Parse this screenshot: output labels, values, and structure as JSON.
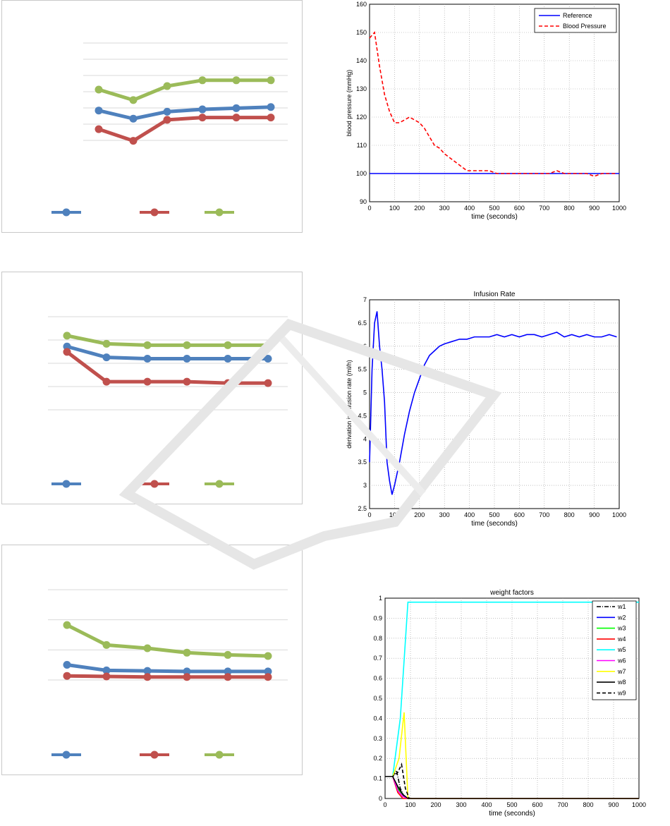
{
  "chart_data": [
    {
      "id": "excel1",
      "type": "line",
      "categories": [
        "",
        "",
        "",
        "",
        "",
        ""
      ],
      "series": [
        {
          "color": "#4f81bd",
          "values": [
            0.62,
            0.55,
            0.61,
            0.63,
            0.64,
            0.65
          ]
        },
        {
          "color": "#c0504d",
          "values": [
            0.46,
            0.36,
            0.54,
            0.56,
            0.56,
            0.56
          ]
        },
        {
          "color": "#9bbb59",
          "values": [
            0.8,
            0.71,
            0.83,
            0.88,
            0.88,
            0.88
          ]
        }
      ],
      "ylim": [
        0,
        1.2
      ]
    },
    {
      "id": "matlab_bp",
      "type": "line",
      "xlabel": "time (seconds)",
      "ylabel": "blood pressure (mmHg)",
      "xlim": [
        0,
        1000
      ],
      "ylim": [
        90,
        160
      ],
      "xticks": [
        "0",
        "100",
        "200",
        "300",
        "400",
        "500",
        "600",
        "700",
        "800",
        "900",
        "1000"
      ],
      "yticks": [
        "90",
        "100",
        "110",
        "120",
        "130",
        "140",
        "150",
        "160"
      ],
      "legend": {
        "position": "top-right",
        "entries": [
          "Reference",
          "Blood Pressure"
        ]
      },
      "grid": true,
      "series": [
        {
          "name": "Reference",
          "color": "#0000ff",
          "style": "solid",
          "x": [
            0,
            1000
          ],
          "y": [
            100,
            100
          ]
        },
        {
          "name": "Blood Pressure",
          "color": "#ff0000",
          "style": "dashed",
          "x": [
            0,
            20,
            40,
            60,
            80,
            100,
            120,
            140,
            160,
            180,
            200,
            220,
            240,
            260,
            280,
            300,
            330,
            360,
            390,
            420,
            450,
            480,
            510,
            540,
            570,
            600,
            630,
            660,
            690,
            720,
            750,
            780,
            810,
            840,
            870,
            900,
            930,
            960,
            990
          ],
          "y": [
            148,
            150,
            138,
            128,
            122,
            118,
            118,
            119,
            120,
            119,
            118,
            116,
            113,
            110,
            109,
            107,
            105,
            103,
            101,
            101,
            101,
            101,
            100,
            100,
            100,
            100,
            100,
            100,
            100,
            100,
            101,
            100,
            100,
            100,
            100,
            99,
            100,
            100,
            100
          ]
        }
      ]
    },
    {
      "id": "excel2",
      "type": "line",
      "categories": [
        "",
        "",
        "",
        "",
        "",
        ""
      ],
      "series": [
        {
          "color": "#4f81bd",
          "values": [
            0.78,
            0.7,
            0.69,
            0.69,
            0.69,
            0.69
          ]
        },
        {
          "color": "#c0504d",
          "values": [
            0.74,
            0.52,
            0.52,
            0.52,
            0.51,
            0.51
          ]
        },
        {
          "color": "#9bbb59",
          "values": [
            0.86,
            0.8,
            0.79,
            0.79,
            0.79,
            0.79
          ]
        }
      ],
      "ylim": [
        0,
        1.0
      ]
    },
    {
      "id": "matlab_inf",
      "type": "line",
      "title": "Infusion Rate",
      "xlabel": "time (seconds)",
      "ylabel": "derivation in infusion rate (ml/h)",
      "xlim": [
        0,
        1000
      ],
      "ylim": [
        2.5,
        7
      ],
      "xticks": [
        "0",
        "100",
        "200",
        "300",
        "400",
        "500",
        "600",
        "700",
        "800",
        "900",
        "1000"
      ],
      "yticks": [
        "2.5",
        "3",
        "3.5",
        "4",
        "4.5",
        "5",
        "5.5",
        "6",
        "6.5",
        "7"
      ],
      "grid": true,
      "series": [
        {
          "color": "#0000ff",
          "style": "solid",
          "x": [
            0,
            10,
            20,
            30,
            40,
            50,
            60,
            70,
            80,
            90,
            100,
            120,
            140,
            160,
            180,
            200,
            220,
            240,
            260,
            280,
            300,
            330,
            360,
            390,
            420,
            450,
            480,
            510,
            540,
            570,
            600,
            630,
            660,
            690,
            720,
            750,
            780,
            810,
            840,
            870,
            900,
            930,
            960,
            990
          ],
          "y": [
            3.5,
            5.5,
            6.5,
            6.75,
            6.0,
            5.5,
            4.8,
            3.5,
            3.1,
            2.8,
            3.0,
            3.5,
            4.1,
            4.6,
            5.0,
            5.3,
            5.6,
            5.8,
            5.9,
            6.0,
            6.05,
            6.1,
            6.15,
            6.15,
            6.2,
            6.2,
            6.2,
            6.25,
            6.2,
            6.25,
            6.2,
            6.25,
            6.25,
            6.2,
            6.25,
            6.3,
            6.2,
            6.25,
            6.2,
            6.25,
            6.2,
            6.2,
            6.25,
            6.2
          ]
        }
      ]
    },
    {
      "id": "excel3",
      "type": "line",
      "categories": [
        "",
        "",
        "",
        "",
        "",
        ""
      ],
      "series": [
        {
          "color": "#4f81bd",
          "values": [
            0.52,
            0.47,
            0.465,
            0.46,
            0.46,
            0.46
          ]
        },
        {
          "color": "#c0504d",
          "values": [
            0.42,
            0.415,
            0.41,
            0.41,
            0.41,
            0.41
          ]
        },
        {
          "color": "#9bbb59",
          "values": [
            0.88,
            0.7,
            0.67,
            0.63,
            0.61,
            0.6
          ]
        }
      ],
      "ylim": [
        0,
        1.2
      ]
    },
    {
      "id": "matlab_w",
      "type": "line",
      "title": "weight factors",
      "xlabel": "time (seconds)",
      "xlim": [
        0,
        1000
      ],
      "ylim": [
        0,
        1
      ],
      "xticks": [
        "0",
        "100",
        "200",
        "300",
        "400",
        "500",
        "600",
        "700",
        "800",
        "900",
        "1000"
      ],
      "yticks": [
        "0",
        "0.1",
        "0.2",
        "0.3",
        "0.4",
        "0.5",
        "0.6",
        "0.7",
        "0.8",
        "0.9",
        "1"
      ],
      "grid": true,
      "legend": {
        "position": "top-right",
        "entries": [
          "w1",
          "w2",
          "w3",
          "w4",
          "w5",
          "w6",
          "w7",
          "w8",
          "w9"
        ]
      },
      "series": [
        {
          "name": "w1",
          "color": "#000000",
          "style": "dashdot",
          "x": [
            0,
            30,
            45,
            60,
            75,
            90
          ],
          "y": [
            0.11,
            0.11,
            0.14,
            0.05,
            0.01,
            0
          ]
        },
        {
          "name": "w2",
          "color": "#0000ff",
          "style": "solid",
          "x": [
            0,
            30,
            50,
            70,
            90,
            1000
          ],
          "y": [
            0.11,
            0.11,
            0.05,
            0.01,
            0,
            0
          ]
        },
        {
          "name": "w3",
          "color": "#00ff00",
          "style": "solid",
          "x": [
            0,
            30,
            50,
            70,
            90,
            1000
          ],
          "y": [
            0.11,
            0.11,
            0.05,
            0.01,
            0,
            0
          ]
        },
        {
          "name": "w4",
          "color": "#ff0000",
          "style": "solid",
          "x": [
            0,
            30,
            50,
            70,
            90,
            1000
          ],
          "y": [
            0.11,
            0.11,
            0.03,
            0.0,
            0,
            0
          ]
        },
        {
          "name": "w5",
          "color": "#00ffff",
          "style": "solid",
          "x": [
            0,
            30,
            60,
            90,
            1000
          ],
          "y": [
            0.11,
            0.11,
            0.4,
            0.98,
            0.98
          ]
        },
        {
          "name": "w6",
          "color": "#ff00ff",
          "style": "solid",
          "x": [
            0,
            30,
            50,
            70,
            90,
            1000
          ],
          "y": [
            0.11,
            0.11,
            0.04,
            0.01,
            0,
            0
          ]
        },
        {
          "name": "w7",
          "color": "#ffff00",
          "style": "solid",
          "x": [
            0,
            30,
            55,
            75,
            90,
            1000
          ],
          "y": [
            0.11,
            0.11,
            0.2,
            0.43,
            0,
            0
          ]
        },
        {
          "name": "w8",
          "color": "#000000",
          "style": "solid",
          "x": [
            0,
            30,
            50,
            70,
            90,
            1000
          ],
          "y": [
            0.11,
            0.11,
            0.06,
            0.02,
            0,
            0
          ]
        },
        {
          "name": "w9",
          "color": "#000000",
          "style": "dashed",
          "x": [
            0,
            30,
            50,
            65,
            80,
            95
          ],
          "y": [
            0.11,
            0.11,
            0.13,
            0.17,
            0.05,
            0
          ]
        }
      ]
    }
  ]
}
